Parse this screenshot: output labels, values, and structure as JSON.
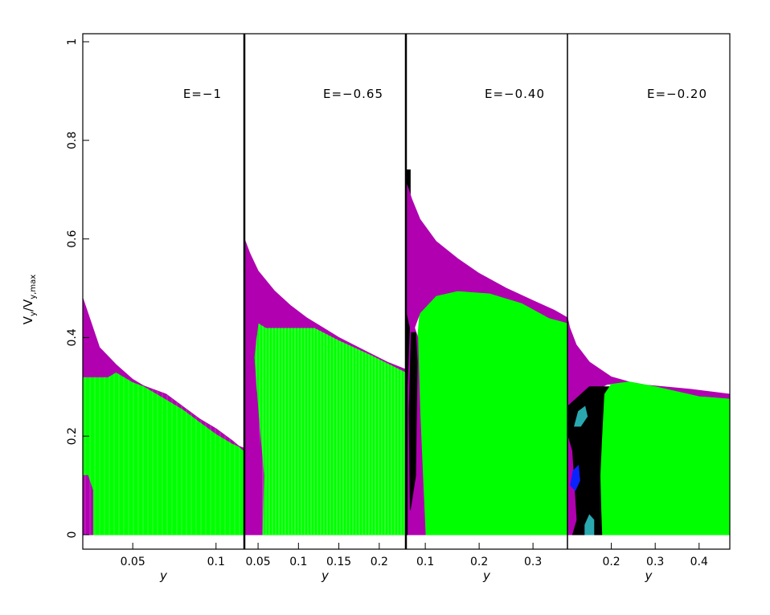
{
  "colors": {
    "chaotic_green": "#00ff00",
    "box_magenta": "#b000b0",
    "escape_red": "#ff2020",
    "black": "#000000",
    "teal": "#2aa8b0",
    "blue": "#0a22ff"
  },
  "chart_data": {
    "type": "region-map",
    "ylabel": "v_y/v_y,max",
    "ylabel_main": "V",
    "ylabel_sub": "y",
    "ylabel_sep": "/V",
    "ylabel_sub2": "y,max",
    "ylim": [
      0,
      1
    ],
    "yticks": [
      0,
      0.2,
      0.4,
      0.6,
      0.8,
      1
    ],
    "ytick_labels": [
      "0",
      "0.2",
      "0.4",
      "0.6",
      "0.8",
      "1"
    ],
    "panels": [
      {
        "label": "E=−1",
        "xlabel": "y",
        "xlim": [
          0.02,
          0.117
        ],
        "xticks": [
          0.05,
          0.1
        ],
        "xtick_labels": [
          "0.05",
          "0.1"
        ],
        "upper_boundary": [
          [
            0.02,
            0.48
          ],
          [
            0.03,
            0.38
          ],
          [
            0.04,
            0.345
          ],
          [
            0.05,
            0.315
          ],
          [
            0.06,
            0.295
          ],
          [
            0.07,
            0.275
          ],
          [
            0.08,
            0.255
          ],
          [
            0.09,
            0.23
          ],
          [
            0.1,
            0.205
          ],
          [
            0.11,
            0.185
          ],
          [
            0.117,
            0.175
          ]
        ],
        "magenta_split": [
          [
            0.02,
            0.32
          ],
          [
            0.035,
            0.32
          ],
          [
            0.04,
            0.33
          ],
          [
            0.05,
            0.31
          ],
          [
            0.07,
            0.285
          ],
          [
            0.09,
            0.235
          ],
          [
            0.1,
            0.215
          ],
          [
            0.11,
            0.19
          ],
          [
            0.117,
            0.17
          ]
        ],
        "regions": [
          {
            "name": "chaotic",
            "color": "#00ff00",
            "polygon": [
              [
                0.02,
                0
              ],
              [
                0.117,
                0
              ],
              [
                0.117,
                0.17
              ],
              [
                0.11,
                0.19
              ],
              [
                0.1,
                0.215
              ],
              [
                0.09,
                0.235
              ],
              [
                0.07,
                0.285
              ],
              [
                0.05,
                0.31
              ],
              [
                0.04,
                0.33
              ],
              [
                0.035,
                0.32
              ],
              [
                0.02,
                0.32
              ]
            ]
          },
          {
            "name": "boxlet",
            "color": "#b000b0",
            "polygon": [
              [
                0.02,
                0.48
              ],
              [
                0.03,
                0.38
              ],
              [
                0.04,
                0.345
              ],
              [
                0.05,
                0.315
              ],
              [
                0.06,
                0.295
              ],
              [
                0.07,
                0.275
              ],
              [
                0.08,
                0.255
              ],
              [
                0.09,
                0.23
              ],
              [
                0.1,
                0.205
              ],
              [
                0.11,
                0.185
              ],
              [
                0.117,
                0.175
              ],
              [
                0.117,
                0.17
              ],
              [
                0.11,
                0.19
              ],
              [
                0.1,
                0.215
              ],
              [
                0.09,
                0.235
              ],
              [
                0.07,
                0.285
              ],
              [
                0.05,
                0.31
              ],
              [
                0.04,
                0.33
              ],
              [
                0.035,
                0.32
              ],
              [
                0.02,
                0.32
              ]
            ]
          },
          {
            "name": "boxlet-left",
            "color": "#b000b0",
            "polygon": [
              [
                0.02,
                0
              ],
              [
                0.026,
                0
              ],
              [
                0.026,
                0.09
              ],
              [
                0.023,
                0.12
              ],
              [
                0.02,
                0.12
              ]
            ]
          }
        ]
      },
      {
        "label": "E=−0.65",
        "xlabel": "y",
        "xlim": [
          0.033,
          0.233
        ],
        "xticks": [
          0.05,
          0.1,
          0.15,
          0.2
        ],
        "xtick_labels": [
          "0.05",
          "0.1",
          "0.15",
          "0.2"
        ],
        "regions": [
          {
            "name": "chaotic",
            "color": "#00ff00",
            "polygon": [
              [
                0.055,
                0
              ],
              [
                0.233,
                0
              ],
              [
                0.233,
                0.33
              ],
              [
                0.19,
                0.365
              ],
              [
                0.15,
                0.395
              ],
              [
                0.12,
                0.42
              ],
              [
                0.06,
                0.42
              ],
              [
                0.05,
                0.43
              ],
              [
                0.045,
                0.36
              ],
              [
                0.05,
                0.25
              ],
              [
                0.055,
                0.1
              ]
            ]
          },
          {
            "name": "boxlet-left",
            "color": "#b000b0",
            "polygon": [
              [
                0.033,
                0
              ],
              [
                0.055,
                0
              ],
              [
                0.057,
                0.12
              ],
              [
                0.05,
                0.25
              ],
              [
                0.045,
                0.36
              ],
              [
                0.05,
                0.43
              ],
              [
                0.04,
                0.44
              ],
              [
                0.033,
                0.45
              ]
            ]
          },
          {
            "name": "boxlet-top",
            "color": "#b000b0",
            "polygon": [
              [
                0.033,
                0.6
              ],
              [
                0.04,
                0.57
              ],
              [
                0.05,
                0.535
              ],
              [
                0.07,
                0.495
              ],
              [
                0.09,
                0.465
              ],
              [
                0.11,
                0.44
              ],
              [
                0.13,
                0.42
              ],
              [
                0.15,
                0.4
              ],
              [
                0.18,
                0.375
              ],
              [
                0.21,
                0.35
              ],
              [
                0.233,
                0.335
              ],
              [
                0.233,
                0.33
              ],
              [
                0.19,
                0.365
              ],
              [
                0.15,
                0.395
              ],
              [
                0.12,
                0.42
              ],
              [
                0.06,
                0.42
              ],
              [
                0.05,
                0.43
              ],
              [
                0.04,
                0.44
              ],
              [
                0.033,
                0.45
              ]
            ]
          }
        ]
      },
      {
        "label": "E=−0.40",
        "xlabel": "y",
        "xlim": [
          0.064,
          0.364
        ],
        "xticks": [
          0.1,
          0.2,
          0.3
        ],
        "xtick_labels": [
          "0.1",
          "0.2",
          "0.3"
        ],
        "regions": [
          {
            "name": "black-fringe",
            "color": "#000000",
            "polygon": [
              [
                0.064,
                0
              ],
              [
                0.072,
                0
              ],
              [
                0.072,
                0.74
              ],
              [
                0.064,
                0.74
              ]
            ]
          },
          {
            "name": "chaotic",
            "color": "#00ff00",
            "polygon": [
              [
                0.1,
                0
              ],
              [
                0.364,
                0
              ],
              [
                0.364,
                0.43
              ],
              [
                0.33,
                0.44
              ],
              [
                0.28,
                0.47
              ],
              [
                0.22,
                0.49
              ],
              [
                0.16,
                0.495
              ],
              [
                0.12,
                0.485
              ],
              [
                0.09,
                0.45
              ],
              [
                0.086,
                0.4
              ],
              [
                0.09,
                0.25
              ],
              [
                0.095,
                0.12
              ]
            ]
          },
          {
            "name": "boxlet-top",
            "color": "#b000b0",
            "polygon": [
              [
                0.066,
                0.71
              ],
              [
                0.075,
                0.68
              ],
              [
                0.09,
                0.64
              ],
              [
                0.12,
                0.595
              ],
              [
                0.16,
                0.56
              ],
              [
                0.2,
                0.53
              ],
              [
                0.25,
                0.5
              ],
              [
                0.3,
                0.475
              ],
              [
                0.34,
                0.455
              ],
              [
                0.364,
                0.44
              ],
              [
                0.364,
                0.43
              ],
              [
                0.33,
                0.44
              ],
              [
                0.28,
                0.47
              ],
              [
                0.22,
                0.49
              ],
              [
                0.16,
                0.495
              ],
              [
                0.12,
                0.485
              ],
              [
                0.09,
                0.45
              ],
              [
                0.08,
                0.42
              ],
              [
                0.072,
                0.42
              ],
              [
                0.066,
                0.45
              ]
            ]
          },
          {
            "name": "boxlet-left",
            "color": "#b000b0",
            "polygon": [
              [
                0.068,
                0
              ],
              [
                0.1,
                0
              ],
              [
                0.095,
                0.12
              ],
              [
                0.09,
                0.25
              ],
              [
                0.086,
                0.4
              ],
              [
                0.08,
                0.42
              ],
              [
                0.072,
                0.42
              ],
              [
                0.068,
                0.3
              ]
            ]
          },
          {
            "name": "black-lobe",
            "color": "#000000",
            "polygon": [
              [
                0.072,
                0.05
              ],
              [
                0.082,
                0.12
              ],
              [
                0.083,
                0.2
              ],
              [
                0.085,
                0.35
              ],
              [
                0.082,
                0.41
              ],
              [
                0.074,
                0.41
              ],
              [
                0.07,
                0.25
              ]
            ]
          }
        ]
      },
      {
        "label": "E=−0.20",
        "xlabel": "y",
        "xlim": [
          0.1,
          0.47
        ],
        "xticks": [
          0.2,
          0.3,
          0.4
        ],
        "xtick_labels": [
          "0.2",
          "0.3",
          "0.4"
        ],
        "regions": [
          {
            "name": "boxlet-top",
            "color": "#b000b0",
            "polygon": [
              [
                0.1,
                0.44
              ],
              [
                0.105,
                0.42
              ],
              [
                0.12,
                0.385
              ],
              [
                0.15,
                0.35
              ],
              [
                0.2,
                0.32
              ],
              [
                0.26,
                0.305
              ],
              [
                0.32,
                0.3
              ],
              [
                0.38,
                0.295
              ],
              [
                0.47,
                0.285
              ],
              [
                0.47,
                0.275
              ],
              [
                0.4,
                0.28
              ],
              [
                0.3,
                0.3
              ],
              [
                0.24,
                0.31
              ],
              [
                0.19,
                0.305
              ],
              [
                0.16,
                0.29
              ],
              [
                0.13,
                0.285
              ],
              [
                0.1,
                0.26
              ]
            ]
          },
          {
            "name": "black-core",
            "color": "#000000",
            "polygon": [
              [
                0.1,
                0
              ],
              [
                0.21,
                0
              ],
              [
                0.21,
                0.3
              ],
              [
                0.15,
                0.3
              ],
              [
                0.1,
                0.26
              ]
            ]
          },
          {
            "name": "chaotic",
            "color": "#00ff00",
            "polygon": [
              [
                0.18,
                0
              ],
              [
                0.47,
                0
              ],
              [
                0.47,
                0.275
              ],
              [
                0.4,
                0.28
              ],
              [
                0.3,
                0.3
              ],
              [
                0.24,
                0.31
              ],
              [
                0.2,
                0.305
              ],
              [
                0.185,
                0.285
              ],
              [
                0.18,
                0.2
              ],
              [
                0.176,
                0.12
              ],
              [
                0.178,
                0.05
              ]
            ]
          },
          {
            "name": "boxlet-left",
            "color": "#b000b0",
            "polygon": [
              [
                0.1,
                0
              ],
              [
                0.11,
                0
              ],
              [
                0.12,
                0.03
              ],
              [
                0.115,
                0.1
              ],
              [
                0.11,
                0.17
              ],
              [
                0.1,
                0.2
              ]
            ]
          },
          {
            "name": "teal-blob",
            "color": "#2aa8b0",
            "polygon": [
              [
                0.116,
                0.22
              ],
              [
                0.125,
                0.25
              ],
              [
                0.14,
                0.26
              ],
              [
                0.145,
                0.24
              ],
              [
                0.13,
                0.22
              ]
            ]
          },
          {
            "name": "blue-blob",
            "color": "#0a22ff",
            "polygon": [
              [
                0.107,
                0.1
              ],
              [
                0.113,
                0.13
              ],
              [
                0.125,
                0.14
              ],
              [
                0.128,
                0.11
              ],
              [
                0.118,
                0.09
              ]
            ]
          },
          {
            "name": "teal-blob-low",
            "color": "#2aa8b0",
            "polygon": [
              [
                0.14,
                0.0
              ],
              [
                0.16,
                0.0
              ],
              [
                0.16,
                0.03
              ],
              [
                0.15,
                0.04
              ],
              [
                0.14,
                0.02
              ]
            ]
          }
        ]
      }
    ]
  }
}
